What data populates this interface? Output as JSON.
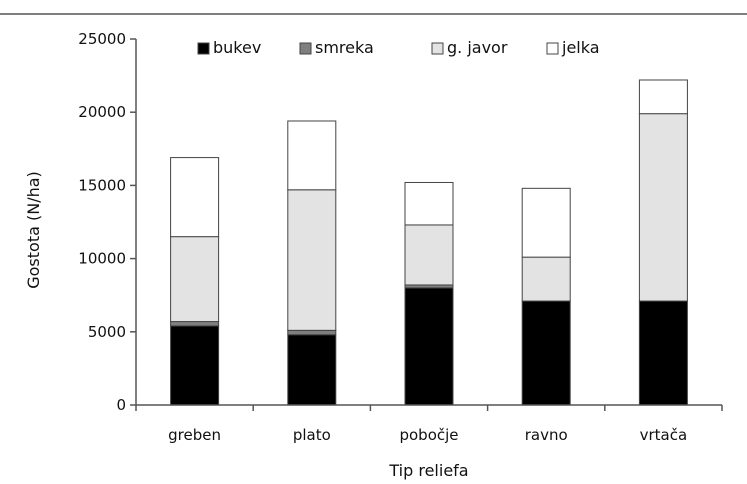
{
  "chart_data": {
    "type": "bar",
    "stacked": true,
    "title": "",
    "xlabel": "Tip reliefa",
    "ylabel": "Gostota (N/ha)",
    "ylim": [
      0,
      25000
    ],
    "yticks": [
      "0",
      "5000",
      "10000",
      "15000",
      "20000",
      "25000"
    ],
    "categories": [
      "greben",
      "plato",
      "pobočje",
      "ravno",
      "vrtača"
    ],
    "legend_position": "top",
    "series": [
      {
        "name": "bukev",
        "color": "#000000",
        "values": [
          5400,
          4800,
          8000,
          7100,
          7100
        ]
      },
      {
        "name": "smreka",
        "color": "#7f7f7f",
        "values": [
          300,
          300,
          200,
          0,
          0
        ]
      },
      {
        "name": "g. javor",
        "color": "#e3e3e3",
        "values": [
          5800,
          9600,
          4100,
          3000,
          12800
        ]
      },
      {
        "name": "jelka",
        "color": "#ffffff",
        "values": [
          5400,
          4700,
          2900,
          4700,
          2300
        ]
      }
    ]
  }
}
